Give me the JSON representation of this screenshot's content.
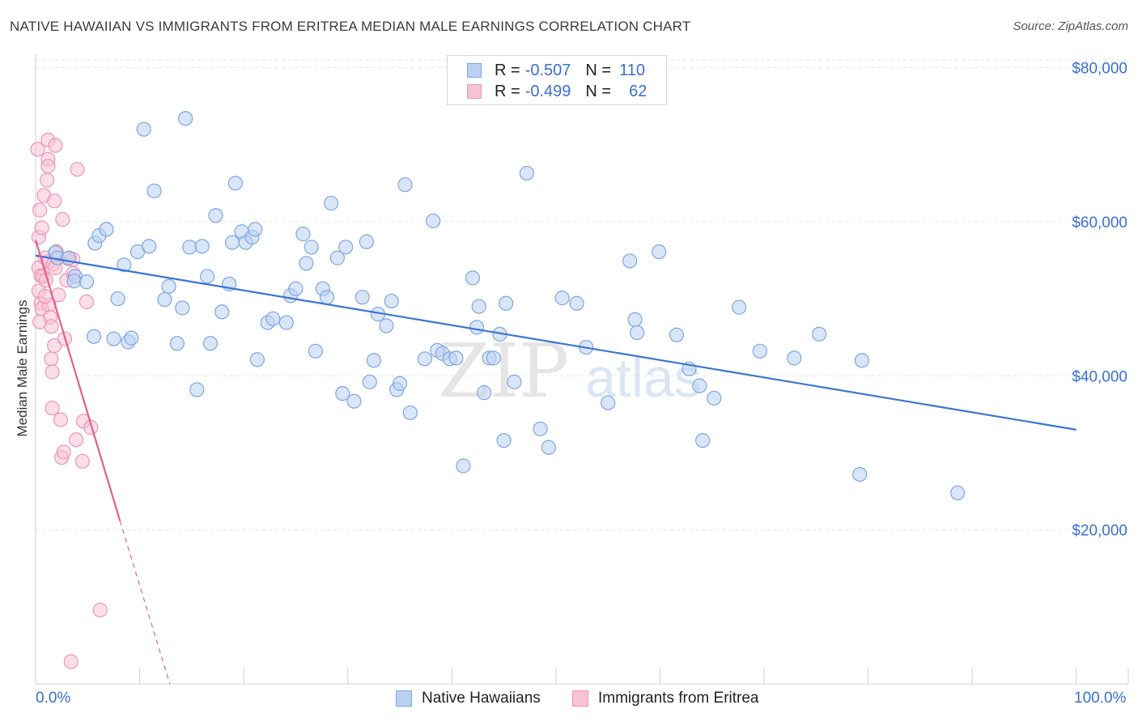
{
  "title": "NATIVE HAWAIIAN VS IMMIGRANTS FROM ERITREA MEDIAN MALE EARNINGS CORRELATION CHART",
  "source": "Source: ZipAtlas.com",
  "watermark": {
    "zip": "ZIP",
    "atlas": "atlas"
  },
  "colors": {
    "blue": "#3a74d4",
    "blue_fill": "#b9d1f2",
    "blue_stroke": "#7ea6e3",
    "pink": "#e0608e",
    "pink_fill": "#f7c3d4",
    "pink_stroke": "#ee95b4",
    "grid": "#e6e6e6",
    "axis_text": "#3a6fd1"
  },
  "legend": {
    "rows": [
      {
        "r_label": "R =",
        "r_value": "-0.507",
        "n_label": "N =",
        "n_value": "110"
      },
      {
        "r_label": "R =",
        "r_value": "-0.499",
        "n_label": "N =",
        "n_value": "62"
      }
    ]
  },
  "chart_data": {
    "type": "scatter",
    "title": "NATIVE HAWAIIAN VS IMMIGRANTS FROM ERITREA MEDIAN MALE EARNINGS CORRELATION CHART",
    "xlabel": "",
    "ylabel": "Median Male Earnings",
    "x_tick_labels": [
      "0.0%",
      "100.0%"
    ],
    "y_ticks": [
      20000,
      40000,
      60000,
      80000
    ],
    "y_tick_labels": [
      "$20,000",
      "$40,000",
      "$60,000",
      "$80,000"
    ],
    "xlim": [
      0,
      105
    ],
    "ylim": [
      0,
      81000
    ],
    "grid": true,
    "series": [
      {
        "name": "Native Hawaiians",
        "color": "blue",
        "trend": {
          "x0": 0,
          "y0": 55600,
          "x1": 100,
          "y1": 33000
        },
        "points": [
          [
            1.9,
            56000
          ],
          [
            2.1,
            55300
          ],
          [
            3.2,
            55300
          ],
          [
            3.8,
            52900
          ],
          [
            3.7,
            52300
          ],
          [
            4.9,
            52200
          ],
          [
            5.6,
            45100
          ],
          [
            5.7,
            57200
          ],
          [
            6.1,
            58200
          ],
          [
            6.8,
            59000
          ],
          [
            7.5,
            44800
          ],
          [
            7.9,
            50000
          ],
          [
            8.5,
            54400
          ],
          [
            8.9,
            44400
          ],
          [
            9.2,
            44900
          ],
          [
            9.8,
            56100
          ],
          [
            10.4,
            72000
          ],
          [
            10.9,
            56800
          ],
          [
            11.4,
            64000
          ],
          [
            12.4,
            49900
          ],
          [
            12.8,
            51600
          ],
          [
            13.6,
            44200
          ],
          [
            14.1,
            48800
          ],
          [
            14.4,
            73400
          ],
          [
            14.8,
            56700
          ],
          [
            15.5,
            38200
          ],
          [
            16.0,
            56800
          ],
          [
            16.5,
            52900
          ],
          [
            16.8,
            44200
          ],
          [
            17.3,
            60800
          ],
          [
            17.9,
            48300
          ],
          [
            18.6,
            51900
          ],
          [
            18.9,
            57300
          ],
          [
            19.2,
            65000
          ],
          [
            19.8,
            58700
          ],
          [
            20.2,
            57300
          ],
          [
            20.8,
            58000
          ],
          [
            21.1,
            59000
          ],
          [
            21.3,
            42100
          ],
          [
            22.3,
            46900
          ],
          [
            22.8,
            47400
          ],
          [
            24.1,
            46900
          ],
          [
            24.5,
            50400
          ],
          [
            25.0,
            51300
          ],
          [
            25.7,
            58400
          ],
          [
            26.0,
            54600
          ],
          [
            26.5,
            56700
          ],
          [
            26.9,
            43200
          ],
          [
            27.6,
            51300
          ],
          [
            28.0,
            50200
          ],
          [
            28.4,
            62400
          ],
          [
            29.0,
            55300
          ],
          [
            29.5,
            37700
          ],
          [
            29.8,
            56700
          ],
          [
            30.6,
            36700
          ],
          [
            31.4,
            50200
          ],
          [
            31.8,
            57400
          ],
          [
            32.1,
            39200
          ],
          [
            32.5,
            42000
          ],
          [
            32.9,
            48000
          ],
          [
            33.7,
            46500
          ],
          [
            34.2,
            49700
          ],
          [
            34.7,
            38200
          ],
          [
            35.0,
            39000
          ],
          [
            35.5,
            64800
          ],
          [
            36.0,
            35200
          ],
          [
            37.4,
            42200
          ],
          [
            38.2,
            60100
          ],
          [
            38.6,
            43300
          ],
          [
            39.1,
            42900
          ],
          [
            39.8,
            42200
          ],
          [
            40.4,
            42300
          ],
          [
            41.1,
            28300
          ],
          [
            42.0,
            52700
          ],
          [
            42.4,
            46300
          ],
          [
            42.6,
            49000
          ],
          [
            43.1,
            37800
          ],
          [
            43.6,
            42300
          ],
          [
            44.0,
            42300
          ],
          [
            44.6,
            45400
          ],
          [
            45.2,
            49400
          ],
          [
            45.0,
            31600
          ],
          [
            46.0,
            39200
          ],
          [
            47.2,
            66300
          ],
          [
            48.5,
            33100
          ],
          [
            49.3,
            30700
          ],
          [
            50.6,
            50100
          ],
          [
            52.0,
            49400
          ],
          [
            52.9,
            43700
          ],
          [
            55.0,
            36500
          ],
          [
            57.1,
            54900
          ],
          [
            57.6,
            47300
          ],
          [
            57.8,
            45600
          ],
          [
            59.9,
            56100
          ],
          [
            61.6,
            45300
          ],
          [
            62.8,
            40900
          ],
          [
            63.8,
            38700
          ],
          [
            64.1,
            31600
          ],
          [
            65.2,
            37100
          ],
          [
            67.6,
            48900
          ],
          [
            69.6,
            43200
          ],
          [
            72.9,
            42300
          ],
          [
            75.3,
            45400
          ],
          [
            79.2,
            27200
          ],
          [
            79.4,
            42000
          ],
          [
            88.6,
            24800
          ]
        ]
      },
      {
        "name": "Immigrants from Eritrea",
        "color": "pink",
        "trend": {
          "x0": 0,
          "y0": 57600,
          "x1": 8.1,
          "y1": 21200
        },
        "trend_ext": {
          "x0": 8.1,
          "y0": 21200,
          "x1": 12.9,
          "y1": 0
        },
        "points": [
          [
            0.2,
            69400
          ],
          [
            0.3,
            58000
          ],
          [
            0.3,
            54000
          ],
          [
            0.3,
            51000
          ],
          [
            0.4,
            61500
          ],
          [
            0.5,
            49400
          ],
          [
            0.5,
            53000
          ],
          [
            0.6,
            59200
          ],
          [
            0.6,
            48700
          ],
          [
            0.7,
            52900
          ],
          [
            0.8,
            63400
          ],
          [
            0.9,
            55300
          ],
          [
            1.0,
            52400
          ],
          [
            1.1,
            65400
          ],
          [
            1.2,
            70600
          ],
          [
            1.2,
            68100
          ],
          [
            1.2,
            67200
          ],
          [
            1.3,
            54800
          ],
          [
            1.3,
            49200
          ],
          [
            1.4,
            47600
          ],
          [
            1.5,
            46400
          ],
          [
            1.5,
            42200
          ],
          [
            1.6,
            40500
          ],
          [
            1.6,
            35800
          ],
          [
            1.7,
            54500
          ],
          [
            1.8,
            62700
          ],
          [
            1.8,
            43900
          ],
          [
            1.9,
            54000
          ],
          [
            1.9,
            69900
          ],
          [
            2.0,
            56100
          ],
          [
            2.2,
            50500
          ],
          [
            2.4,
            34300
          ],
          [
            2.5,
            29400
          ],
          [
            2.6,
            60300
          ],
          [
            2.7,
            30100
          ],
          [
            2.8,
            44800
          ],
          [
            3.0,
            52400
          ],
          [
            3.1,
            55200
          ],
          [
            3.6,
            55100
          ],
          [
            3.6,
            53300
          ],
          [
            3.9,
            31700
          ],
          [
            4.0,
            66800
          ],
          [
            4.5,
            28900
          ],
          [
            4.6,
            34100
          ],
          [
            4.9,
            49600
          ],
          [
            5.3,
            33300
          ],
          [
            3.4,
            2900
          ],
          [
            6.2,
            9600
          ],
          [
            0.4,
            47000
          ],
          [
            0.9,
            50300
          ]
        ]
      }
    ]
  }
}
